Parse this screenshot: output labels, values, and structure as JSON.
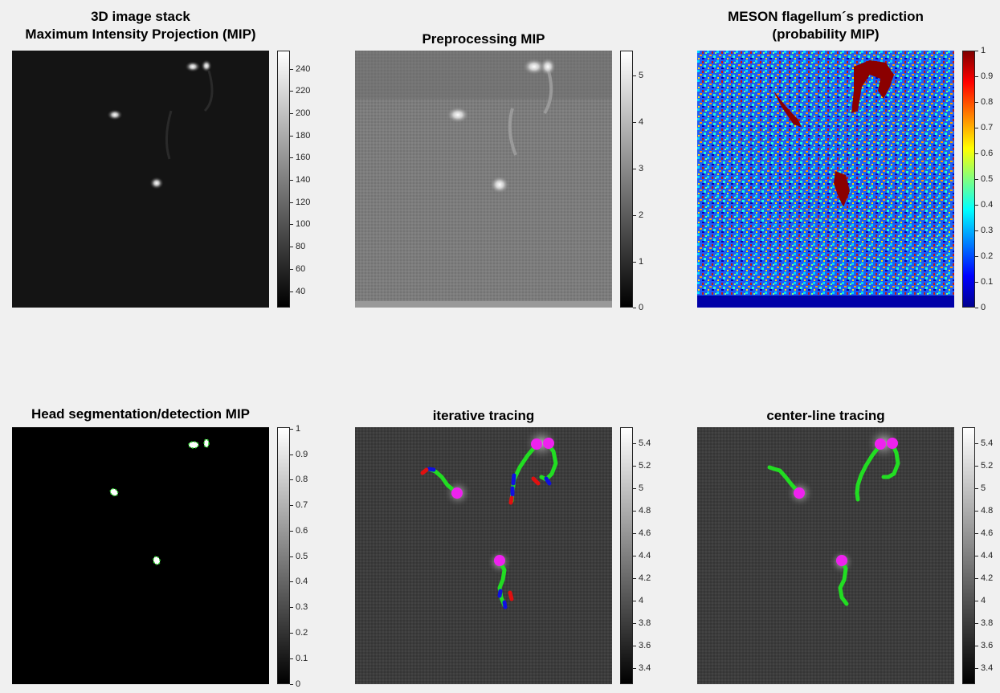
{
  "panels": {
    "p1": {
      "title_line1": "3D image stack",
      "title_line2": "Maximum Intensity Projection (MIP)"
    },
    "p2": {
      "title": "Preprocessing MIP"
    },
    "p3": {
      "title_line1": "MESON flagellum´s prediction",
      "title_line2": "(probability MIP)"
    },
    "p4": {
      "title": "Head segmentation/detection MIP"
    },
    "p5": {
      "title": "iterative tracing"
    },
    "p6": {
      "title": "center-line tracing"
    }
  },
  "colorbars": {
    "cb1": [
      "240",
      "220",
      "200",
      "180",
      "160",
      "140",
      "120",
      "100",
      "80",
      "60",
      "40"
    ],
    "cb2": [
      "5",
      "4",
      "3",
      "2",
      "1",
      "0"
    ],
    "cb3": [
      "1",
      "0.9",
      "0.8",
      "0.7",
      "0.6",
      "0.5",
      "0.4",
      "0.3",
      "0.2",
      "0.1",
      "0"
    ],
    "cb4": [
      "1",
      "0.9",
      "0.8",
      "0.7",
      "0.6",
      "0.5",
      "0.4",
      "0.3",
      "0.2",
      "0.1",
      "0"
    ],
    "cb5": [
      "5.4",
      "5.2",
      "5",
      "4.8",
      "4.6",
      "4.4",
      "4.2",
      "4",
      "3.8",
      "3.6",
      "3.4"
    ],
    "cb6": [
      "5.4",
      "5.2",
      "5",
      "4.8",
      "4.6",
      "4.4",
      "4.2",
      "4",
      "3.8",
      "3.6",
      "3.4"
    ]
  },
  "colors": {
    "trace": "#22dd22",
    "head_marker": "#ee22ee",
    "segment_red": "#e01010",
    "segment_blue": "#1010e0"
  }
}
